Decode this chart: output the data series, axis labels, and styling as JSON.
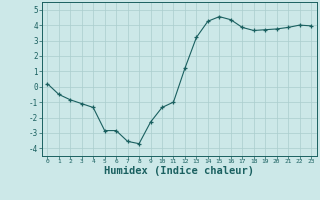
{
  "x": [
    0,
    1,
    2,
    3,
    4,
    5,
    6,
    7,
    8,
    9,
    10,
    11,
    12,
    13,
    14,
    15,
    16,
    17,
    18,
    19,
    20,
    21,
    22,
    23
  ],
  "y": [
    0.2,
    -0.5,
    -0.85,
    -1.1,
    -1.35,
    -2.85,
    -2.85,
    -3.55,
    -3.7,
    -2.3,
    -1.35,
    -1.0,
    1.2,
    3.2,
    4.25,
    4.55,
    4.35,
    3.85,
    3.65,
    3.7,
    3.75,
    3.85,
    4.0,
    3.95
  ],
  "xlabel": "Humidex (Indice chaleur)",
  "ylim": [
    -4.5,
    5.5
  ],
  "xlim": [
    -0.5,
    23.5
  ],
  "bg_color": "#cce8e8",
  "grid_color": "#aacece",
  "line_color": "#1a6060",
  "xlabel_fontsize": 7.5
}
